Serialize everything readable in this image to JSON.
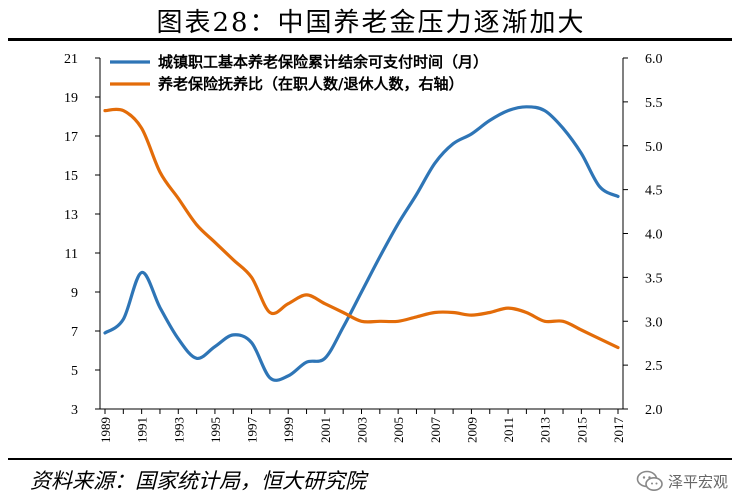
{
  "header": {
    "title": "图表28：中国养老金压力逐渐加大"
  },
  "footer": {
    "source": "资料来源：国家统计局，恒大研究院",
    "brand": "泽平宏观"
  },
  "chart_data": {
    "type": "line",
    "x": [
      1989,
      1990,
      1991,
      1992,
      1993,
      1994,
      1995,
      1996,
      1997,
      1998,
      1999,
      2000,
      2001,
      2002,
      2003,
      2004,
      2005,
      2006,
      2007,
      2008,
      2009,
      2010,
      2011,
      2012,
      2013,
      2014,
      2015,
      2016,
      2017
    ],
    "x_tick_labels": [
      "1989",
      "1991",
      "1993",
      "1995",
      "1997",
      "1999",
      "2001",
      "2003",
      "2005",
      "2007",
      "2009",
      "2011",
      "2013",
      "2015",
      "2017"
    ],
    "series": [
      {
        "name": "城镇职工基本养老保险累计结余可支付时间（月）",
        "axis": "left",
        "color": "#2E75B6",
        "values": [
          6.9,
          7.6,
          10.0,
          8.2,
          6.6,
          5.6,
          6.2,
          6.8,
          6.4,
          4.6,
          4.7,
          5.4,
          5.6,
          7.2,
          9.0,
          10.8,
          12.5,
          14.0,
          15.6,
          16.6,
          17.1,
          17.8,
          18.3,
          18.5,
          18.3,
          17.4,
          16.1,
          14.4,
          13.9
        ]
      },
      {
        "name": "养老保险抚养比（在职人数/退休人数，右轴）",
        "axis": "right",
        "color": "#E36C09",
        "values": [
          5.4,
          5.4,
          5.2,
          4.7,
          4.4,
          4.1,
          3.9,
          3.7,
          3.5,
          3.1,
          3.2,
          3.3,
          3.2,
          3.1,
          3.0,
          3.0,
          3.0,
          3.05,
          3.1,
          3.1,
          3.07,
          3.1,
          3.15,
          3.1,
          3.0,
          3.0,
          2.9,
          2.8,
          2.7
        ]
      }
    ],
    "y_left": {
      "ylim": [
        3,
        21
      ],
      "ticks": [
        "3",
        "5",
        "7",
        "9",
        "11",
        "13",
        "15",
        "17",
        "19",
        "21"
      ]
    },
    "y_right": {
      "ylim": [
        2.0,
        6.0
      ],
      "ticks": [
        "2.0",
        "2.5",
        "3.0",
        "3.5",
        "4.0",
        "4.5",
        "5.0",
        "5.5",
        "6.0"
      ]
    },
    "grid": false,
    "legend_position": "top-left"
  }
}
